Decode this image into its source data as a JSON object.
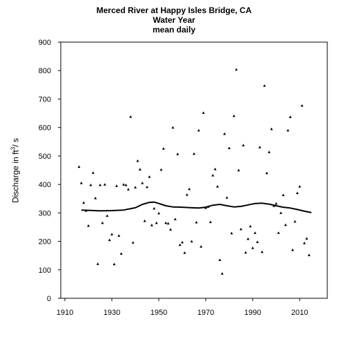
{
  "chart_data": {
    "type": "scatter",
    "title": "Merced River at Happy Isles Bridge, CA",
    "subtitle_lines": [
      "Water Year",
      "mean daily"
    ],
    "ylabel_prefix": "Discharge in ft",
    "ylabel_sup": "3",
    "ylabel_suffix": "/ s",
    "xlabel": "",
    "xlim": [
      1910,
      2020
    ],
    "ylim": [
      0,
      900
    ],
    "x_ticks": [
      1910,
      1930,
      1950,
      1970,
      1990,
      2010
    ],
    "y_ticks": [
      0,
      100,
      200,
      300,
      400,
      500,
      600,
      700,
      800,
      900
    ],
    "grid": false,
    "series": [
      {
        "type": "scatter",
        "marker_color": "#000000",
        "points": [
          [
            1916,
            462
          ],
          [
            1917,
            405
          ],
          [
            1918,
            336
          ],
          [
            1919,
            308
          ],
          [
            1920,
            255
          ],
          [
            1921,
            398
          ],
          [
            1922,
            441
          ],
          [
            1923,
            352
          ],
          [
            1924,
            121
          ],
          [
            1925,
            398
          ],
          [
            1926,
            265
          ],
          [
            1927,
            400
          ],
          [
            1928,
            290
          ],
          [
            1929,
            205
          ],
          [
            1930,
            225
          ],
          [
            1931,
            120
          ],
          [
            1932,
            395
          ],
          [
            1933,
            220
          ],
          [
            1934,
            157
          ],
          [
            1935,
            400
          ],
          [
            1936,
            398
          ],
          [
            1937,
            383
          ],
          [
            1938,
            638
          ],
          [
            1939,
            196
          ],
          [
            1940,
            390
          ],
          [
            1941,
            483
          ],
          [
            1942,
            453
          ],
          [
            1943,
            405
          ],
          [
            1944,
            272
          ],
          [
            1945,
            391
          ],
          [
            1946,
            427
          ],
          [
            1947,
            257
          ],
          [
            1948,
            316
          ],
          [
            1949,
            265
          ],
          [
            1950,
            299
          ],
          [
            1951,
            452
          ],
          [
            1952,
            526
          ],
          [
            1953,
            265
          ],
          [
            1954,
            263
          ],
          [
            1955,
            242
          ],
          [
            1956,
            600
          ],
          [
            1957,
            278
          ],
          [
            1958,
            507
          ],
          [
            1959,
            188
          ],
          [
            1960,
            197
          ],
          [
            1961,
            160
          ],
          [
            1962,
            364
          ],
          [
            1963,
            384
          ],
          [
            1964,
            200
          ],
          [
            1965,
            508
          ],
          [
            1966,
            267
          ],
          [
            1967,
            590
          ],
          [
            1968,
            182
          ],
          [
            1969,
            652
          ],
          [
            1970,
            318
          ],
          [
            1971,
            322
          ],
          [
            1972,
            268
          ],
          [
            1973,
            432
          ],
          [
            1974,
            454
          ],
          [
            1975,
            393
          ],
          [
            1976,
            135
          ],
          [
            1977,
            87
          ],
          [
            1978,
            578
          ],
          [
            1979,
            354
          ],
          [
            1980,
            528
          ],
          [
            1981,
            229
          ],
          [
            1982,
            641
          ],
          [
            1983,
            804
          ],
          [
            1984,
            450
          ],
          [
            1985,
            243
          ],
          [
            1986,
            538
          ],
          [
            1987,
            161
          ],
          [
            1988,
            209
          ],
          [
            1989,
            253
          ],
          [
            1990,
            177
          ],
          [
            1991,
            230
          ],
          [
            1992,
            198
          ],
          [
            1993,
            531
          ],
          [
            1994,
            163
          ],
          [
            1995,
            747
          ],
          [
            1996,
            440
          ],
          [
            1997,
            514
          ],
          [
            1998,
            595
          ],
          [
            1999,
            325
          ],
          [
            2000,
            333
          ],
          [
            2001,
            230
          ],
          [
            2002,
            300
          ],
          [
            2003,
            363
          ],
          [
            2004,
            258
          ],
          [
            2005,
            590
          ],
          [
            2006,
            637
          ],
          [
            2007,
            170
          ],
          [
            2008,
            270
          ],
          [
            2009,
            370
          ],
          [
            2010,
            393
          ],
          [
            2011,
            677
          ],
          [
            2012,
            194
          ],
          [
            2013,
            210
          ],
          [
            2014,
            152
          ]
        ]
      },
      {
        "type": "line",
        "line_color": "#000000",
        "points": [
          [
            1917,
            310
          ],
          [
            1920,
            309
          ],
          [
            1925,
            307
          ],
          [
            1930,
            308
          ],
          [
            1935,
            310
          ],
          [
            1940,
            318
          ],
          [
            1943,
            330
          ],
          [
            1946,
            337
          ],
          [
            1948,
            338
          ],
          [
            1950,
            333
          ],
          [
            1953,
            325
          ],
          [
            1956,
            321
          ],
          [
            1960,
            320
          ],
          [
            1964,
            318
          ],
          [
            1967,
            317
          ],
          [
            1970,
            320
          ],
          [
            1973,
            327
          ],
          [
            1976,
            330
          ],
          [
            1979,
            325
          ],
          [
            1982,
            321
          ],
          [
            1985,
            323
          ],
          [
            1988,
            328
          ],
          [
            1991,
            333
          ],
          [
            1994,
            334
          ],
          [
            1997,
            331
          ],
          [
            2000,
            325
          ],
          [
            2003,
            320
          ],
          [
            2006,
            317
          ],
          [
            2009,
            312
          ],
          [
            2012,
            306
          ],
          [
            2015,
            301
          ]
        ]
      }
    ]
  }
}
